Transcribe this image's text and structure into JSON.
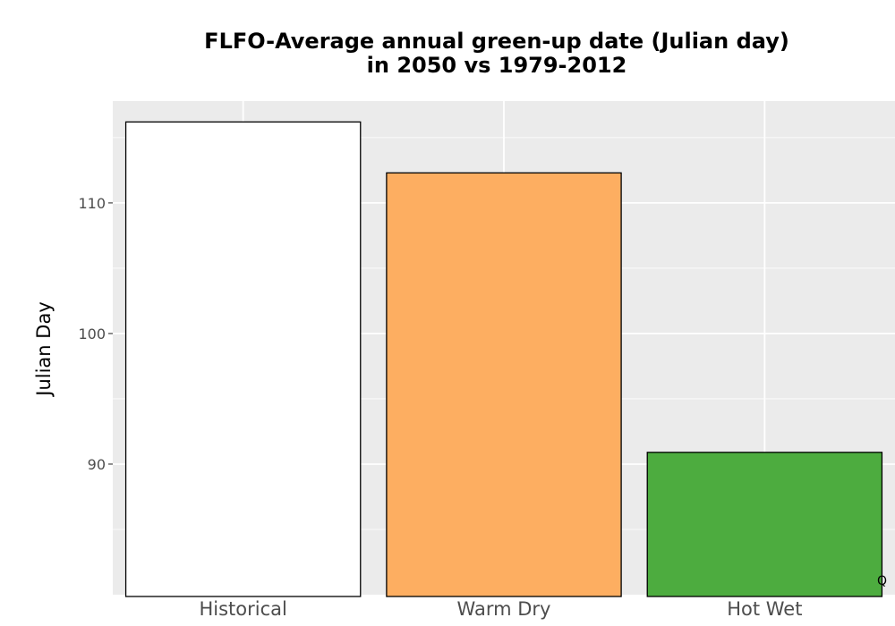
{
  "chart_data": {
    "type": "bar",
    "title": "FLFO-Average annual green-up date (Julian day)\nin 2050 vs 1979-2012",
    "xlabel": "",
    "ylabel": "Julian Day",
    "categories": [
      "Historical",
      "Warm Dry",
      "Hot Wet"
    ],
    "values": [
      116.2,
      112.3,
      90.9
    ],
    "colors": [
      "#ffffff",
      "#fdae61",
      "#4dac3f"
    ],
    "ylim": [
      80,
      117.8
    ],
    "yticks": [
      90,
      100,
      110
    ],
    "grid": true,
    "panel_background": "#ebebeb",
    "corner_mark": "Q"
  }
}
